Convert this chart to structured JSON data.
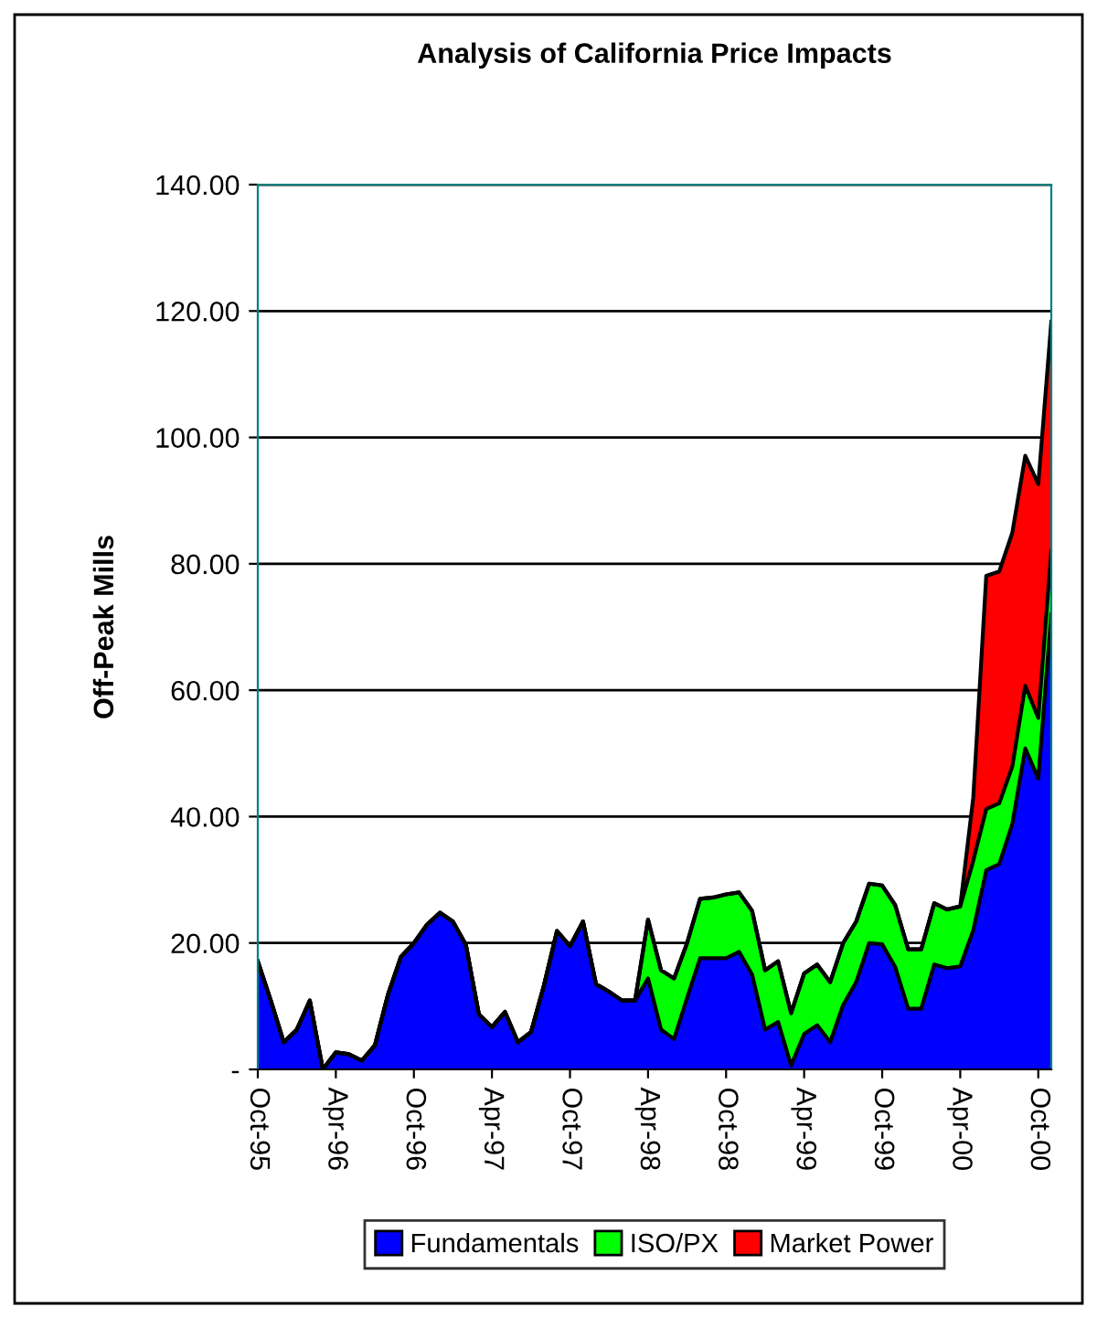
{
  "chart_data": {
    "type": "area",
    "stacked": true,
    "title": "Analysis of California Price Impacts",
    "ylabel": "Off-Peak Mills",
    "categories": [
      "Oct-95",
      null,
      null,
      null,
      null,
      null,
      "Apr-96",
      null,
      null,
      null,
      null,
      null,
      "Oct-96",
      null,
      null,
      null,
      null,
      null,
      "Apr-97",
      null,
      null,
      null,
      null,
      null,
      "Oct-97",
      null,
      null,
      null,
      null,
      null,
      "Apr-98",
      null,
      null,
      null,
      null,
      null,
      "Oct-98",
      null,
      null,
      null,
      null,
      null,
      "Apr-99",
      null,
      null,
      null,
      null,
      null,
      "Oct-99",
      null,
      null,
      null,
      null,
      null,
      "Apr-00",
      null,
      null,
      null,
      null,
      null,
      "Oct-00",
      null
    ],
    "series": [
      {
        "name": "Fundamentals",
        "color": "#0000ff",
        "values": [
          17.1,
          10.9,
          4.3,
          6.3,
          10.9,
          0,
          2.7,
          2.4,
          1.4,
          3.8,
          11.8,
          17.8,
          20,
          22.9,
          24.8,
          23.4,
          19.7,
          8.7,
          6.7,
          9.1,
          4.3,
          5.9,
          13.3,
          21.9,
          19.5,
          23.4,
          13.5,
          12.3,
          10.9,
          10.9,
          14.4,
          6.3,
          4.8,
          11.3,
          17.6,
          17.6,
          17.6,
          18.6,
          15,
          6.3,
          7.5,
          0.6,
          5.6,
          7,
          4.3,
          10.2,
          13.8,
          20,
          19.8,
          16.2,
          9.6,
          9.6,
          16.6,
          16,
          16.3,
          22,
          31.5,
          32.5,
          38.8,
          50.8,
          46,
          72
        ]
      },
      {
        "name": "ISO/PX",
        "color": "#00ff00",
        "values": [
          0,
          0,
          0,
          0,
          0,
          0,
          0,
          0,
          0,
          0,
          0,
          0,
          0,
          0,
          0,
          0,
          0,
          0,
          0,
          0,
          0,
          0,
          0,
          0,
          0,
          0,
          0,
          0,
          0,
          0,
          9.3,
          9.4,
          9.6,
          8.7,
          9.4,
          9.6,
          10.1,
          9.4,
          10.1,
          9.4,
          9.6,
          8.3,
          9.6,
          9.6,
          9.5,
          9.8,
          9.6,
          9.4,
          9.3,
          9.8,
          9.4,
          9.4,
          9.7,
          9.3,
          9.5,
          11,
          9.7,
          9.6,
          9.1,
          9.9,
          9.6,
          10
        ]
      },
      {
        "name": "Market Power",
        "color": "#ff0000",
        "values": [
          0,
          0,
          0,
          0,
          0,
          0,
          0,
          0,
          0,
          0,
          0,
          0,
          0,
          0,
          0,
          0,
          0,
          0,
          0,
          0,
          0,
          0,
          0,
          0,
          0,
          0,
          0,
          0,
          0,
          0,
          0,
          0,
          0,
          0,
          0,
          0,
          0,
          0,
          0,
          0,
          0,
          0,
          0,
          0,
          0,
          0,
          0,
          0,
          0,
          0,
          0,
          0,
          0,
          0,
          0,
          10,
          36.9,
          36.7,
          37,
          36.4,
          37,
          36.3
        ]
      }
    ],
    "ylim": [
      0,
      140
    ],
    "yticks": [
      {
        "value": 0,
        "label": "-"
      },
      {
        "value": 20,
        "label": "20.00"
      },
      {
        "value": 40,
        "label": "40.00"
      },
      {
        "value": 60,
        "label": "60.00"
      },
      {
        "value": 80,
        "label": "80.00"
      },
      {
        "value": 100,
        "label": "100.00"
      },
      {
        "value": 120,
        "label": "120.00"
      },
      {
        "value": 140,
        "label": "140.00"
      }
    ],
    "grid": "y",
    "legend": "bottom"
  }
}
